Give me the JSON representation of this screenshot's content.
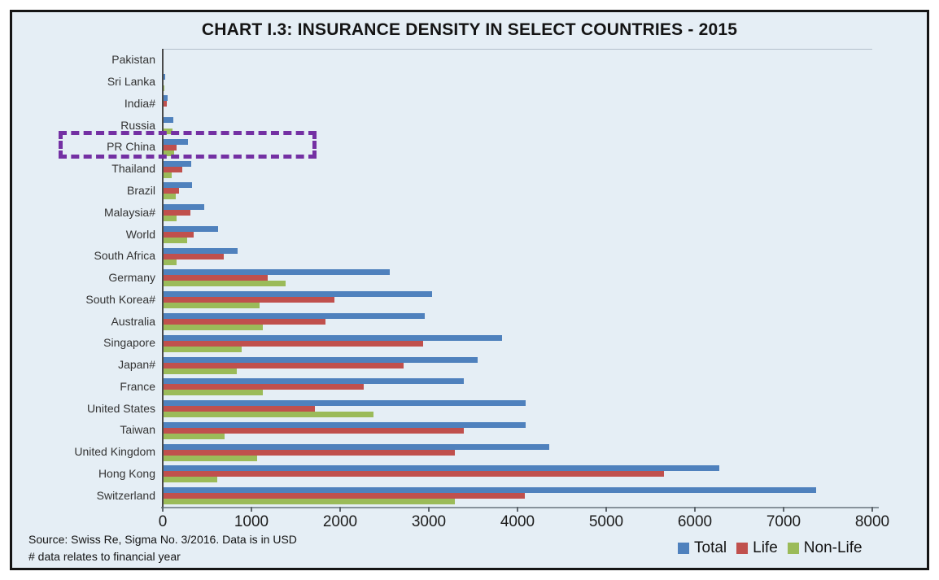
{
  "title": "CHART I.3: INSURANCE DENSITY IN SELECT COUNTRIES - 2015",
  "source": {
    "line1": "Source: Swiss Re, Sigma No. 3/2016. Data is in USD",
    "line2": "# data relates to financial year"
  },
  "legend": [
    {
      "label": "Total",
      "color": "#4f81bd"
    },
    {
      "label": "Life",
      "color": "#c0504d"
    },
    {
      "label": "Non-Life",
      "color": "#9bbb59"
    }
  ],
  "highlighted_category": "PR China",
  "colors": {
    "total": "#4f81bd",
    "life": "#c0504d",
    "non_life": "#9bbb59",
    "background": "#e5eef5",
    "highlight_box": "#7430a3",
    "frame_border": "#151515"
  },
  "chart_data": {
    "type": "bar",
    "orientation": "horizontal",
    "title": "CHART I.3: INSURANCE DENSITY IN SELECT COUNTRIES - 2015",
    "xlabel": "",
    "ylabel": "",
    "xlim": [
      0,
      8000
    ],
    "x_ticks": [
      0,
      1000,
      2000,
      3000,
      4000,
      5000,
      6000,
      7000,
      8000
    ],
    "grid": false,
    "legend_position": "bottom-right",
    "units": "USD",
    "categories": [
      "Pakistan",
      "Sri Lanka",
      "India#",
      "Russia",
      "PR China",
      "Thailand",
      "Brazil",
      "Malaysia#",
      "World",
      "South Africa",
      "Germany",
      "South Korea#",
      "Australia",
      "Singapore",
      "Japan#",
      "France",
      "United States",
      "Taiwan",
      "United Kingdom",
      "Hong Kong",
      "Switzerland"
    ],
    "series": [
      {
        "name": "Total",
        "color": "#4f81bd",
        "values": [
          9,
          30,
          55,
          117,
          281,
          319,
          332,
          472,
          621,
          844,
          2563,
          3034,
          2958,
          3825,
          3554,
          3392,
          4096,
          4094,
          4359,
          6271,
          7371
        ]
      },
      {
        "name": "Life",
        "color": "#c0504d",
        "values": [
          5,
          13,
          43,
          6,
          153,
          223,
          181,
          316,
          346,
          684,
          1181,
          1940,
          1831,
          2932,
          2717,
          2263,
          1719,
          3397,
          3292,
          5655,
          4079
        ]
      },
      {
        "name": "Non-Life",
        "color": "#9bbb59",
        "values": [
          4,
          17,
          12,
          111,
          128,
          97,
          151,
          156,
          276,
          159,
          1381,
          1094,
          1128,
          894,
          837,
          1129,
          2377,
          697,
          1067,
          616,
          3292
        ]
      }
    ]
  }
}
